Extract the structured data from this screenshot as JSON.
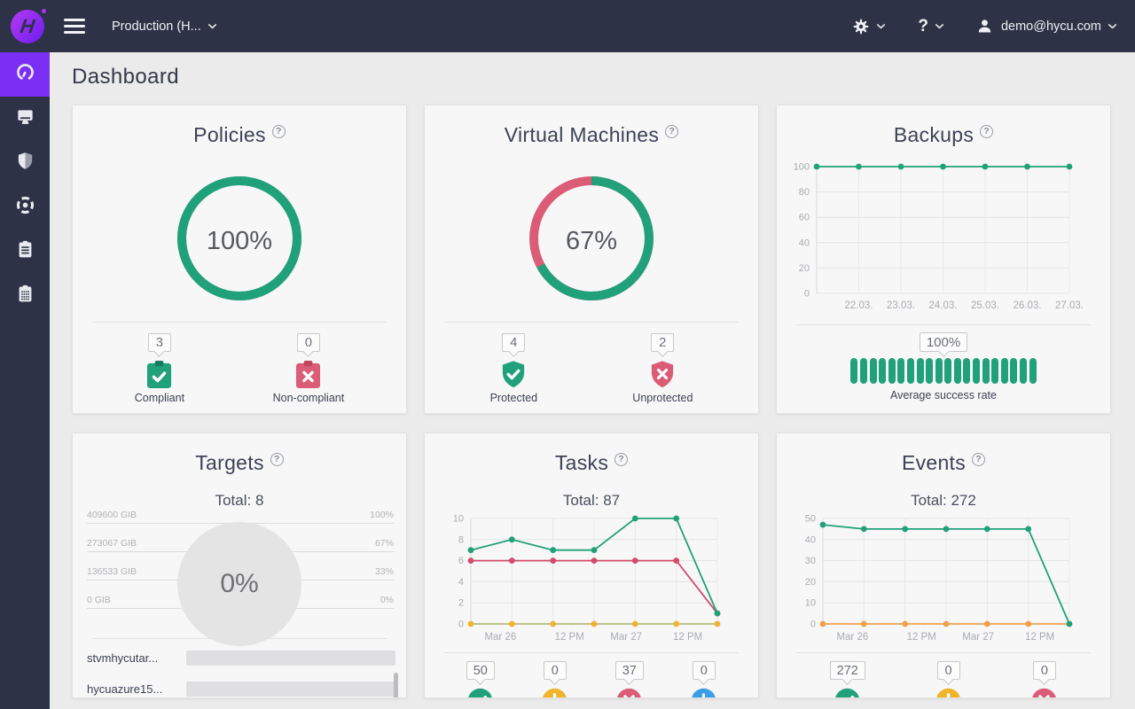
{
  "colors": {
    "green": "#21a179",
    "green_dark": "#157d5e",
    "pink": "#db5c77",
    "pink_dark": "#c24560",
    "pink_line": "#d14b6d",
    "yellow": "#f0b42c",
    "orange": "#f0a04b",
    "olive": "#b6bb79",
    "blue": "#3b9ce8",
    "purple": "#7b2ff5",
    "navy": "#2d3246"
  },
  "navbar": {
    "context_selector": "Production (H...",
    "help_label": "?",
    "user_email": "demo@hycu.com"
  },
  "page": {
    "title": "Dashboard",
    "help_glyph": "?"
  },
  "sidebar": {
    "items": [
      {
        "id": "dashboard",
        "icon": "gauge-icon",
        "active": true
      },
      {
        "id": "virtual-machines",
        "icon": "monitor-icon",
        "active": false
      },
      {
        "id": "policies",
        "icon": "shield-icon",
        "active": false
      },
      {
        "id": "targets",
        "icon": "target-icon",
        "active": false
      },
      {
        "id": "tasks",
        "icon": "clipboard-list-icon",
        "active": false
      },
      {
        "id": "events",
        "icon": "clipboard-grid-icon",
        "active": false
      }
    ]
  },
  "cards": {
    "policies": {
      "title": "Policies",
      "percent": "100%",
      "donut": {
        "percent": 100,
        "color": "green",
        "rest_color": "green"
      },
      "stats": [
        {
          "value": "3",
          "label": "Compliant",
          "icon": "clipboard-check-icon",
          "color": "green",
          "dark": "green_dark",
          "glyph": "check"
        },
        {
          "value": "0",
          "label": "Non-compliant",
          "icon": "clipboard-x-icon",
          "color": "pink",
          "dark": "pink_dark",
          "glyph": "x"
        }
      ]
    },
    "virtual_machines": {
      "title": "Virtual Machines",
      "percent": "67%",
      "donut": {
        "percent": 67,
        "color": "green",
        "rest_color": "pink"
      },
      "stats": [
        {
          "value": "4",
          "label": "Protected",
          "icon": "shield-check-icon",
          "color": "green",
          "glyph": "check"
        },
        {
          "value": "2",
          "label": "Unprotected",
          "icon": "shield-x-icon",
          "color": "pink",
          "glyph": "x"
        }
      ]
    },
    "backups": {
      "title": "Backups",
      "rate": "100%",
      "segments": 20,
      "rate_label": "Average success rate"
    },
    "targets": {
      "title": "Targets",
      "total": "Total: 8",
      "percent": "0%",
      "rows": [
        {
          "left": "409600 GIB",
          "right": "100%"
        },
        {
          "left": "273067 GIB",
          "right": "67%"
        },
        {
          "left": "136533 GIB",
          "right": "33%"
        },
        {
          "left": "0 GIB",
          "right": "0%"
        }
      ],
      "list": [
        {
          "name": "stvmhycutar..."
        },
        {
          "name": "hycuazure15..."
        }
      ]
    },
    "tasks": {
      "title": "Tasks",
      "total": "Total: 87",
      "stats": [
        {
          "value": "50",
          "icon": "check-circle-icon",
          "color": "green",
          "glyph": "check"
        },
        {
          "value": "0",
          "icon": "warning-circle-icon",
          "color": "yellow",
          "glyph": "exclamation"
        },
        {
          "value": "37",
          "icon": "error-circle-icon",
          "color": "pink",
          "glyph": "x"
        },
        {
          "value": "0",
          "icon": "clock-circle-icon",
          "color": "blue",
          "glyph": "clock"
        }
      ]
    },
    "events": {
      "title": "Events",
      "total": "Total: 272",
      "stats": [
        {
          "value": "272",
          "icon": "check-circle-icon",
          "color": "green",
          "glyph": "check"
        },
        {
          "value": "0",
          "icon": "warning-circle-icon",
          "color": "yellow",
          "glyph": "exclamation"
        },
        {
          "value": "0",
          "icon": "error-circle-icon",
          "color": "pink",
          "glyph": "x"
        }
      ]
    }
  },
  "chart_data": [
    {
      "id": "backups",
      "type": "line",
      "title": "Backups",
      "ylim": [
        0,
        100
      ],
      "yticks": [
        100,
        80,
        60,
        40,
        20,
        0
      ],
      "grid_x": [
        0.1667,
        0.3333,
        0.5,
        0.6667,
        0.8333,
        1
      ],
      "x_tick_labels": [
        {
          "text": "22.03.",
          "pos": 0.1667
        },
        {
          "text": "23.03.",
          "pos": 0.3333
        },
        {
          "text": "24.03.",
          "pos": 0.5
        },
        {
          "text": "25.03.",
          "pos": 0.6667
        },
        {
          "text": "26.03.",
          "pos": 0.8333
        },
        {
          "text": "27.03.",
          "pos": 1
        }
      ],
      "series": [
        {
          "name": "success-rate",
          "color": "green",
          "values": [
            100,
            100,
            100,
            100,
            100,
            100,
            100
          ]
        }
      ]
    },
    {
      "id": "tasks",
      "type": "line",
      "title": "Tasks",
      "ylim": [
        0,
        10
      ],
      "yticks": [
        10,
        8,
        6,
        4,
        2,
        0
      ],
      "grid_x": [
        0.1667,
        0.3333,
        0.5,
        0.6667,
        0.8333,
        1
      ],
      "x_tick_labels": [
        {
          "text": "Mar 26",
          "pos": 0.12
        },
        {
          "text": "12 PM",
          "pos": 0.4
        },
        {
          "text": "Mar 27",
          "pos": 0.63
        },
        {
          "text": "12 PM",
          "pos": 0.88
        }
      ],
      "series": [
        {
          "name": "waiting",
          "color": "olive",
          "dot": "yellow",
          "values": [
            0,
            0,
            0,
            0,
            0,
            0,
            0
          ]
        },
        {
          "name": "error",
          "color": "pink_line",
          "values": [
            6,
            6,
            6,
            6,
            6,
            6,
            1
          ]
        },
        {
          "name": "ok",
          "color": "green",
          "values": [
            7,
            8,
            7,
            7,
            10,
            10,
            1
          ]
        }
      ]
    },
    {
      "id": "events",
      "type": "line",
      "title": "Events",
      "ylim": [
        0,
        50
      ],
      "yticks": [
        50,
        40,
        30,
        20,
        10,
        0
      ],
      "grid_x": [
        0.1667,
        0.3333,
        0.5,
        0.6667,
        0.8333,
        1
      ],
      "x_tick_labels": [
        {
          "text": "Mar 26",
          "pos": 0.12
        },
        {
          "text": "12 PM",
          "pos": 0.4
        },
        {
          "text": "Mar 27",
          "pos": 0.63
        },
        {
          "text": "12 PM",
          "pos": 0.88
        }
      ],
      "series": [
        {
          "name": "warning",
          "color": "orange",
          "values": [
            0,
            0,
            0,
            0,
            0,
            0,
            0
          ]
        },
        {
          "name": "info",
          "color": "green",
          "values": [
            47,
            45,
            45,
            45,
            45,
            45,
            0
          ]
        }
      ]
    }
  ]
}
